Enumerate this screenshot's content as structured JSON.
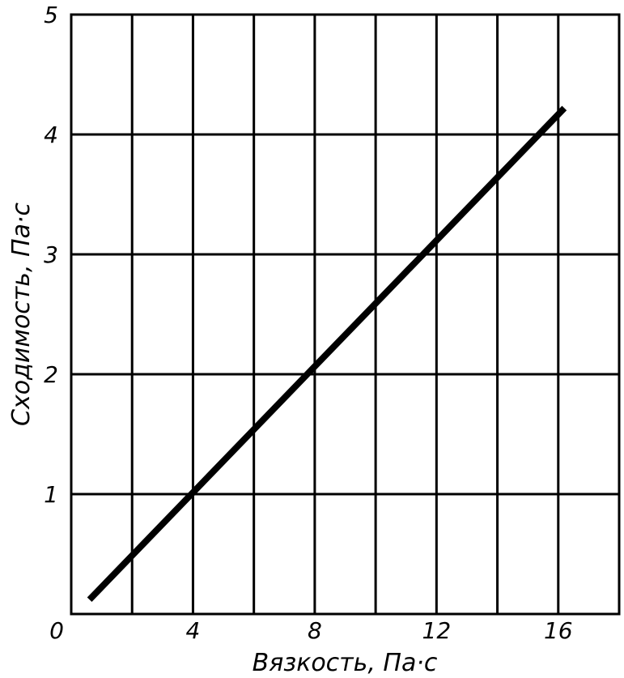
{
  "chart_data": {
    "type": "line",
    "title": "",
    "xlabel": "Вязкость, Па·с",
    "ylabel": "Сходимость, Па·с",
    "origin_label": "0",
    "xlim": [
      0,
      18
    ],
    "ylim": [
      0,
      5
    ],
    "x_ticks": [
      4,
      8,
      12,
      16
    ],
    "x_tick_labels": [
      "4",
      "8",
      "12",
      "16"
    ],
    "y_ticks": [
      1,
      2,
      3,
      4,
      5
    ],
    "y_tick_labels": [
      "1",
      "2",
      "3",
      "4",
      "5"
    ],
    "x_grid_step": 2,
    "y_grid_step": 1,
    "grid": true,
    "series": [
      {
        "x": [
          0.6,
          16.2
        ],
        "y": [
          0.12,
          4.22
        ]
      }
    ],
    "line_color": "#000000"
  }
}
